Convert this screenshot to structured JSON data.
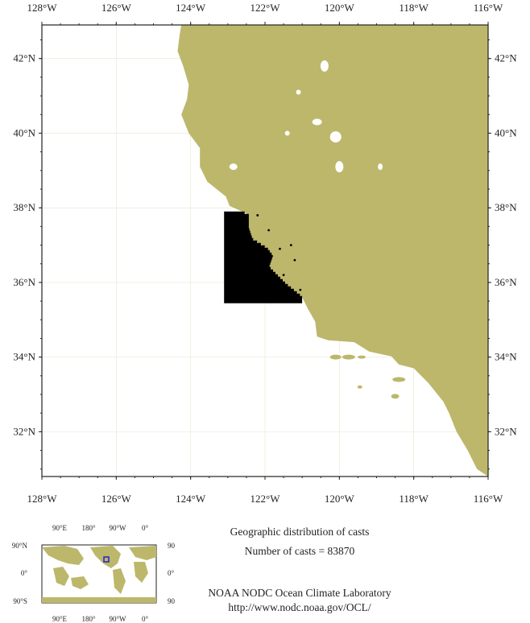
{
  "map": {
    "lon_range": [
      -128,
      -116
    ],
    "lat_range": [
      30.8,
      42.9
    ],
    "land_color": "#bdb76b",
    "ocean_color": "#ffffff",
    "cast_color": "#000000",
    "lon_ticks": [
      {
        "value": -128,
        "label": "128°W"
      },
      {
        "value": -126,
        "label": "126°W"
      },
      {
        "value": -124,
        "label": "124°W"
      },
      {
        "value": -122,
        "label": "122°W"
      },
      {
        "value": -120,
        "label": "120°W"
      },
      {
        "value": -118,
        "label": "118°W"
      },
      {
        "value": -116,
        "label": "116°W"
      }
    ],
    "lat_ticks": [
      {
        "value": 42,
        "label": "42°N"
      },
      {
        "value": 40,
        "label": "40°N"
      },
      {
        "value": 38,
        "label": "38°N"
      },
      {
        "value": 36,
        "label": "36°N"
      },
      {
        "value": 34,
        "label": "34°N"
      },
      {
        "value": 32,
        "label": "32°N"
      }
    ],
    "cast_region": {
      "lon_min": -123.1,
      "lon_max": -121.0,
      "lat_min": 35.5,
      "lat_max": 37.9
    }
  },
  "inset": {
    "top_ticks": [
      "90°E",
      "180°",
      "90°W",
      "0°"
    ],
    "bottom_ticks": [
      "90°E",
      "180°",
      "90°W",
      "0°"
    ],
    "left_ticks": [
      "90°N",
      "0°",
      "90°S"
    ],
    "right_ticks": [
      "90",
      "0°",
      "90"
    ],
    "highlight_color": "#2222cc"
  },
  "caption": {
    "title": "Geographic distribution of casts",
    "count": "Number of casts =  83870",
    "org": "NOAA NODC Ocean Climate Laboratory",
    "url": "http://www.nodc.noaa.gov/OCL/"
  }
}
